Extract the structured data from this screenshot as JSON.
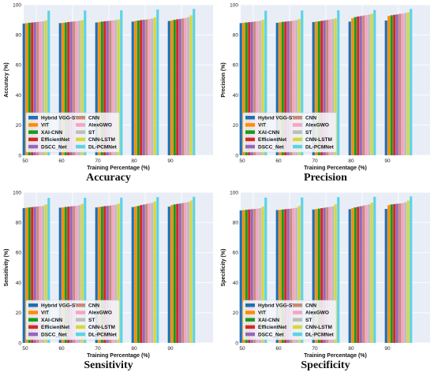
{
  "chart_data": [
    {
      "type": "bar",
      "title": "Accuracy",
      "xlabel": "Training Percentage (%)",
      "ylabel": "Accuracy (%)",
      "categories": [
        "50",
        "60",
        "70",
        "80",
        "90"
      ],
      "ylim": [
        0,
        100
      ],
      "yticks": [
        0,
        20,
        40,
        60,
        80,
        100
      ],
      "grid": true,
      "legend": "bottom-left",
      "series": [
        {
          "name": "Hybrid VGG-SVM",
          "values": [
            87.5,
            87.8,
            88.2,
            88.8,
            89.2
          ]
        },
        {
          "name": "ViT",
          "values": [
            87.8,
            88.0,
            88.5,
            89.2,
            89.6
          ]
        },
        {
          "name": "XAI-CNN",
          "values": [
            88.0,
            88.2,
            88.8,
            89.5,
            90.0
          ]
        },
        {
          "name": "EfficientNet",
          "values": [
            88.2,
            88.5,
            89.0,
            89.8,
            90.3
          ]
        },
        {
          "name": "DSCC_Net",
          "values": [
            88.4,
            88.7,
            89.2,
            90.0,
            90.6
          ]
        },
        {
          "name": "CNN",
          "values": [
            88.6,
            88.9,
            89.4,
            90.2,
            90.9
          ]
        },
        {
          "name": "AlexGWO",
          "values": [
            88.8,
            89.1,
            89.6,
            90.5,
            91.2
          ]
        },
        {
          "name": "ST",
          "values": [
            89.0,
            89.3,
            89.8,
            90.8,
            91.8
          ]
        },
        {
          "name": "CNN-LSTM",
          "values": [
            89.6,
            89.8,
            90.2,
            91.6,
            93.0
          ]
        },
        {
          "name": "DL-PCMNet",
          "values": [
            96.0,
            96.2,
            96.3,
            96.8,
            97.2
          ]
        }
      ]
    },
    {
      "type": "bar",
      "title": "Precision",
      "xlabel": "Training Percentage (%)",
      "ylabel": "Precision (%)",
      "categories": [
        "50",
        "60",
        "70",
        "80",
        "90"
      ],
      "ylim": [
        0,
        100
      ],
      "yticks": [
        0,
        20,
        40,
        60,
        80,
        100
      ],
      "grid": true,
      "legend": "bottom-left",
      "series": [
        {
          "name": "Hybrid VGG-SVM",
          "values": [
            87.8,
            88.0,
            88.5,
            88.8,
            89.5
          ]
        },
        {
          "name": "ViT",
          "values": [
            88.0,
            88.3,
            88.8,
            91.0,
            92.5
          ]
        },
        {
          "name": "XAI-CNN",
          "values": [
            88.2,
            88.6,
            89.0,
            91.8,
            93.0
          ]
        },
        {
          "name": "EfficientNet",
          "values": [
            88.4,
            88.8,
            89.3,
            92.2,
            93.3
          ]
        },
        {
          "name": "DSCC_Net",
          "values": [
            88.6,
            89.0,
            89.6,
            92.5,
            93.6
          ]
        },
        {
          "name": "CNN",
          "values": [
            88.8,
            89.2,
            89.9,
            92.8,
            93.9
          ]
        },
        {
          "name": "AlexGWO",
          "values": [
            89.0,
            89.5,
            90.2,
            93.1,
            94.2
          ]
        },
        {
          "name": "ST",
          "values": [
            89.3,
            89.8,
            90.5,
            93.4,
            94.5
          ]
        },
        {
          "name": "CNN-LSTM",
          "values": [
            90.0,
            90.5,
            91.0,
            94.0,
            95.0
          ]
        },
        {
          "name": "DL-PCMNet",
          "values": [
            96.0,
            96.2,
            96.3,
            96.5,
            97.2
          ]
        }
      ]
    },
    {
      "type": "bar",
      "title": "Sensitivity",
      "xlabel": "Training Percentage (%)",
      "ylabel": "Sensitivity (%)",
      "categories": [
        "50",
        "60",
        "70",
        "80",
        "90"
      ],
      "ylim": [
        0,
        100
      ],
      "yticks": [
        0,
        20,
        40,
        60,
        80,
        100
      ],
      "grid": true,
      "legend": "bottom-left",
      "series": [
        {
          "name": "Hybrid VGG-SVM",
          "values": [
            89.5,
            89.8,
            90.0,
            90.2,
            90.5
          ]
        },
        {
          "name": "ViT",
          "values": [
            89.8,
            90.0,
            90.3,
            90.6,
            91.5
          ]
        },
        {
          "name": "XAI-CNN",
          "values": [
            90.0,
            90.3,
            90.5,
            91.0,
            92.0
          ]
        },
        {
          "name": "EfficientNet",
          "values": [
            90.2,
            90.5,
            90.8,
            91.5,
            92.3
          ]
        },
        {
          "name": "DSCC_Net",
          "values": [
            90.4,
            90.7,
            91.0,
            91.9,
            92.6
          ]
        },
        {
          "name": "CNN",
          "values": [
            90.6,
            90.9,
            91.2,
            92.3,
            92.9
          ]
        },
        {
          "name": "AlexGWO",
          "values": [
            90.8,
            91.1,
            91.5,
            92.7,
            93.2
          ]
        },
        {
          "name": "ST",
          "values": [
            91.0,
            91.4,
            91.8,
            93.0,
            93.6
          ]
        },
        {
          "name": "CNN-LSTM",
          "values": [
            92.0,
            92.3,
            92.6,
            94.0,
            94.5
          ]
        },
        {
          "name": "DL-PCMNet",
          "values": [
            96.3,
            96.4,
            96.5,
            96.8,
            97.0
          ]
        }
      ]
    },
    {
      "type": "bar",
      "title": "Specificity",
      "xlabel": "Training Percentage (%)",
      "ylabel": "Specificity (%)",
      "categories": [
        "50",
        "60",
        "70",
        "80",
        "90"
      ],
      "ylim": [
        0,
        100
      ],
      "yticks": [
        0,
        20,
        40,
        60,
        80,
        100
      ],
      "grid": true,
      "legend": "bottom-left",
      "series": [
        {
          "name": "Hybrid VGG-SVM",
          "values": [
            88.0,
            88.2,
            88.6,
            88.8,
            89.0
          ]
        },
        {
          "name": "ViT",
          "values": [
            88.2,
            88.4,
            88.9,
            89.5,
            91.5
          ]
        },
        {
          "name": "XAI-CNN",
          "values": [
            88.4,
            88.6,
            89.2,
            90.0,
            92.0
          ]
        },
        {
          "name": "EfficientNet",
          "values": [
            88.6,
            88.8,
            89.5,
            90.4,
            92.2
          ]
        },
        {
          "name": "DSCC_Net",
          "values": [
            88.8,
            89.0,
            89.8,
            90.8,
            92.4
          ]
        },
        {
          "name": "CNN",
          "values": [
            89.0,
            89.2,
            90.1,
            91.2,
            92.6
          ]
        },
        {
          "name": "AlexGWO",
          "values": [
            89.2,
            89.5,
            90.4,
            91.6,
            92.9
          ]
        },
        {
          "name": "ST",
          "values": [
            89.5,
            89.8,
            90.7,
            92.0,
            93.3
          ]
        },
        {
          "name": "CNN-LSTM",
          "values": [
            90.5,
            91.0,
            92.0,
            93.2,
            94.5
          ]
        },
        {
          "name": "DL-PCMNet",
          "values": [
            96.5,
            96.6,
            96.8,
            97.0,
            97.3
          ]
        }
      ]
    }
  ],
  "colors": [
    "#1f6fb2",
    "#ff8c00",
    "#1a9a1a",
    "#d62728",
    "#9467bd",
    "#c98a7a",
    "#f5a3c7",
    "#bdbdbd",
    "#d7d740",
    "#5bd3e8"
  ]
}
